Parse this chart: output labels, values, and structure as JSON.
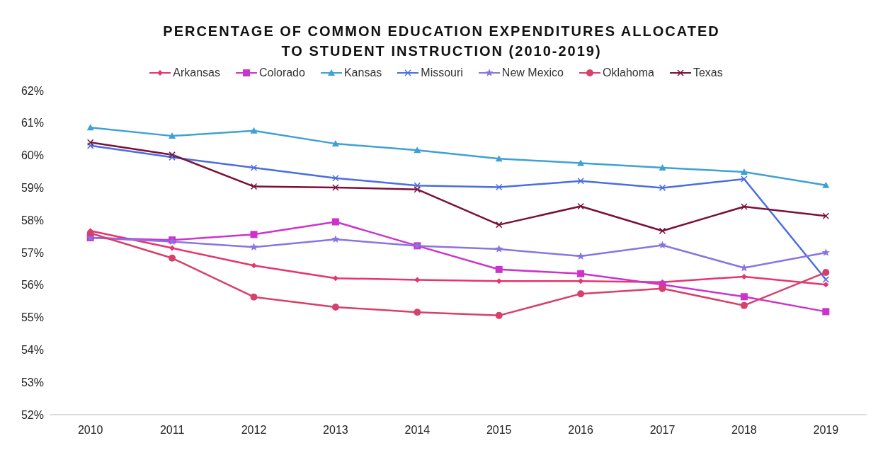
{
  "chart_data": {
    "type": "line",
    "title": "PERCENTAGE OF COMMON EDUCATION EXPENDITURES ALLOCATED\nTO STUDENT INSTRUCTION (2010-2019)",
    "categories": [
      "2010",
      "2011",
      "2012",
      "2013",
      "2014",
      "2015",
      "2016",
      "2017",
      "2018",
      "2019"
    ],
    "series": [
      {
        "name": "Arkansas",
        "color": "#e8336b",
        "marker": "diamond",
        "values": [
          57.67,
          57.14,
          56.6,
          56.21,
          56.16,
          56.12,
          56.12,
          56.09,
          56.26,
          56.01
        ]
      },
      {
        "name": "Colorado",
        "color": "#cc33cc",
        "marker": "square",
        "values": [
          57.46,
          57.39,
          57.56,
          57.95,
          57.21,
          56.48,
          56.35,
          56.01,
          55.64,
          55.18
        ]
      },
      {
        "name": "Kansas",
        "color": "#3fa0d6",
        "marker": "triangle",
        "values": [
          60.86,
          60.6,
          60.76,
          60.36,
          60.16,
          59.9,
          59.76,
          59.62,
          59.49,
          59.08
        ]
      },
      {
        "name": "Missouri",
        "color": "#4a6de0",
        "marker": "cross",
        "values": [
          60.3,
          59.94,
          59.62,
          59.3,
          59.07,
          59.02,
          59.21,
          59.0,
          59.27,
          56.17
        ]
      },
      {
        "name": "New Mexico",
        "color": "#8a74e0",
        "marker": "star",
        "values": [
          57.46,
          57.34,
          57.17,
          57.41,
          57.21,
          57.11,
          56.89,
          57.23,
          56.53,
          57.0
        ]
      },
      {
        "name": "Oklahoma",
        "color": "#d6406a",
        "marker": "circle",
        "values": [
          57.6,
          56.83,
          55.63,
          55.32,
          55.16,
          55.06,
          55.73,
          55.89,
          55.37,
          56.39
        ]
      },
      {
        "name": "Texas",
        "color": "#7a1038",
        "marker": "cross",
        "values": [
          60.4,
          60.02,
          59.04,
          59.01,
          58.95,
          57.86,
          58.43,
          57.67,
          58.42,
          58.13
        ]
      }
    ],
    "ylim": [
      52,
      62
    ],
    "yticks": [
      {
        "value": 52,
        "label": "52%"
      },
      {
        "value": 53,
        "label": "53%"
      },
      {
        "value": 54,
        "label": "54%"
      },
      {
        "value": 55,
        "label": "55%"
      },
      {
        "value": 56,
        "label": "56%"
      },
      {
        "value": 57,
        "label": "57%"
      },
      {
        "value": 58,
        "label": "58%"
      },
      {
        "value": 59,
        "label": "59%"
      },
      {
        "value": 60,
        "label": "60%"
      },
      {
        "value": 61,
        "label": "61%"
      },
      {
        "value": 62,
        "label": "62%"
      }
    ],
    "grid": false,
    "legend": "top",
    "line_style": "solid"
  }
}
